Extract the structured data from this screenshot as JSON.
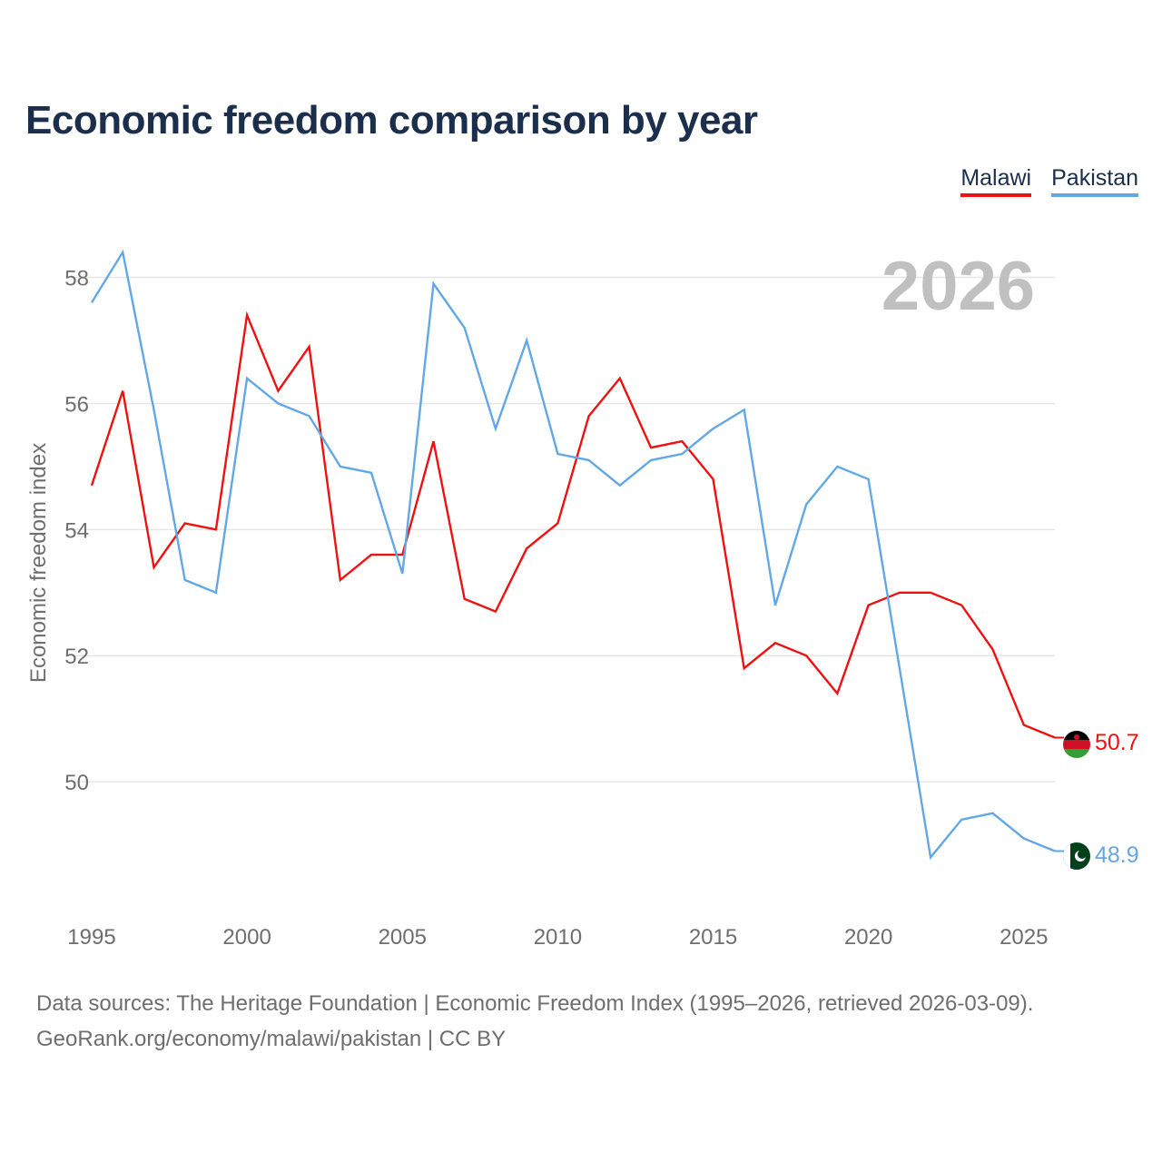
{
  "title": "Economic freedom comparison by year",
  "legend": {
    "malawi": "Malawi",
    "pakistan": "Pakistan"
  },
  "footer": {
    "line1": "Data sources: The Heritage Foundation | Economic Freedom Index (1995–2026, retrieved 2026-03-09).",
    "line2": "GeoRank.org/economy/malawi/pakistan | CC BY"
  },
  "colors": {
    "malawi": "#ee1111",
    "pakistan": "#62a7e6",
    "grid": "#e6e6e6",
    "title": "#1b2e4b"
  },
  "chart_data": {
    "type": "line",
    "title": "Economic freedom comparison by year",
    "xlabel": "",
    "ylabel": "Economic freedom index",
    "current_year_label": "2026",
    "x": [
      1995,
      1996,
      1997,
      1998,
      1999,
      2000,
      2001,
      2002,
      2003,
      2004,
      2005,
      2006,
      2007,
      2008,
      2009,
      2010,
      2011,
      2012,
      2013,
      2014,
      2015,
      2016,
      2017,
      2018,
      2019,
      2020,
      2021,
      2022,
      2023,
      2024,
      2025,
      2026
    ],
    "xticks": [
      1995,
      2000,
      2005,
      2010,
      2015,
      2020,
      2025
    ],
    "yticks": [
      50,
      52,
      54,
      56,
      58
    ],
    "xlim": [
      1995,
      2026
    ],
    "ylim": [
      48.0,
      58.8
    ],
    "grid": true,
    "legend_position": "top-right",
    "series": [
      {
        "name": "Malawi",
        "color": "#ee1111",
        "end_label": "50.7",
        "values": [
          54.7,
          56.2,
          53.4,
          54.1,
          54.0,
          57.4,
          56.2,
          56.9,
          53.2,
          53.6,
          53.6,
          55.4,
          52.9,
          52.7,
          53.7,
          54.1,
          55.8,
          56.4,
          55.3,
          55.4,
          54.8,
          51.8,
          52.2,
          52.0,
          51.4,
          52.8,
          53.0,
          53.0,
          52.8,
          52.1,
          50.9,
          50.7
        ]
      },
      {
        "name": "Pakistan",
        "color": "#62a7e6",
        "end_label": "48.9",
        "values": [
          57.6,
          58.4,
          55.9,
          53.2,
          53.0,
          56.4,
          56.0,
          55.8,
          55.0,
          54.9,
          53.3,
          57.9,
          57.2,
          55.6,
          57.0,
          55.2,
          55.1,
          54.7,
          55.1,
          55.2,
          55.6,
          55.9,
          52.8,
          54.4,
          55.0,
          54.8,
          51.8,
          48.8,
          49.4,
          49.5,
          49.1,
          48.9
        ]
      }
    ]
  }
}
